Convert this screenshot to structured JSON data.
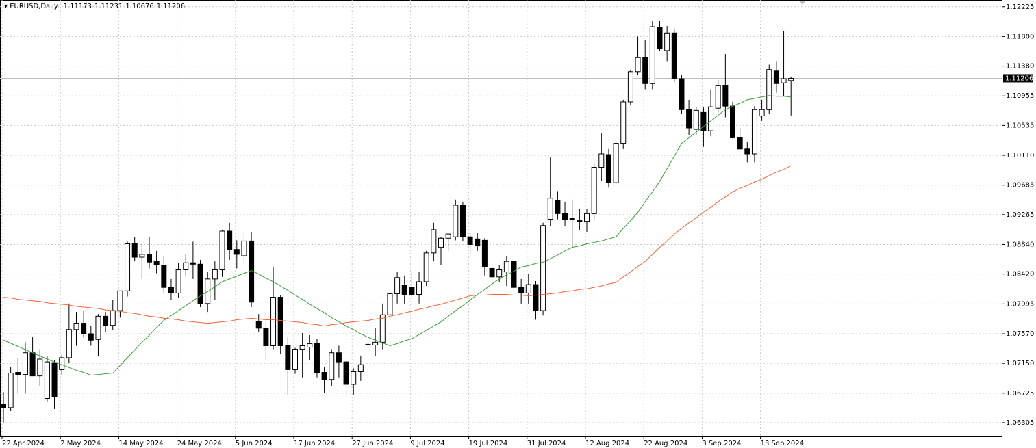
{
  "chart_data": {
    "type": "candlestick",
    "title": "EURUSD,Daily",
    "categories": [
      "22 Apr 2024",
      null,
      null,
      null,
      null,
      null,
      null,
      null,
      "2 May 2024",
      null,
      null,
      null,
      null,
      null,
      null,
      null,
      "14 May 2024",
      null,
      null,
      null,
      null,
      null,
      null,
      null,
      "24 May 2024",
      null,
      null,
      null,
      null,
      null,
      null,
      null,
      "5 Jun 2024",
      null,
      null,
      null,
      null,
      null,
      null,
      null,
      "17 Jun 2024",
      null,
      null,
      null,
      null,
      null,
      null,
      null,
      "27 Jun 2024",
      null,
      null,
      null,
      null,
      null,
      null,
      null,
      "9 Jul 2024",
      null,
      null,
      null,
      null,
      null,
      null,
      null,
      "19 Jul 2024",
      null,
      null,
      null,
      null,
      null,
      null,
      null,
      "31 Jul 2024",
      null,
      null,
      null,
      null,
      null,
      null,
      null,
      "12 Aug 2024",
      null,
      null,
      null,
      null,
      null,
      null,
      null,
      "22 Aug 2024",
      null,
      null,
      null,
      null,
      null,
      null,
      null,
      "3 Sep 2024",
      null,
      null,
      null,
      null,
      null,
      null,
      null,
      "13 Sep 2024",
      null,
      null,
      null,
      null
    ],
    "open": [
      1.0657,
      1.0652,
      1.0702,
      1.0699,
      1.073,
      1.0697,
      1.0665,
      1.0716,
      1.0706,
      1.0723,
      1.0763,
      1.0772,
      1.0757,
      1.0749,
      1.0782,
      1.0769,
      1.079,
      1.0818,
      1.0885,
      1.0866,
      1.087,
      1.086,
      1.0854,
      1.0823,
      1.0815,
      1.0848,
      1.0858,
      1.0856,
      1.08,
      1.0835,
      1.0848,
      1.0903,
      1.0877,
      1.0868,
      1.0889,
      1.0775,
      1.0765,
      1.074,
      1.0809,
      1.074,
      1.0706,
      1.0735,
      1.0738,
      1.0743,
      1.0702,
      1.0692,
      1.073,
      1.0717,
      1.0685,
      1.0703,
      1.0741,
      1.0741,
      1.0745,
      1.0784,
      1.0814,
      1.0826,
      1.0823,
      1.0813,
      1.0831,
      1.0872,
      1.088,
      1.0893,
      1.0895,
      1.094,
      1.0895,
      1.0892,
      1.089,
      1.085,
      1.0838,
      1.0845,
      1.086,
      1.0823,
      1.0815,
      1.0827,
      1.079,
      1.092,
      1.0947,
      1.0928,
      1.0921,
      1.0918,
      1.0917,
      1.0928,
      1.0994,
      1.1012,
      1.0972,
      1.1028,
      1.1087,
      1.113,
      1.115,
      1.1113,
      1.1193,
      1.116,
      1.1185,
      1.112,
      1.1076,
      1.1048,
      1.1072,
      1.1046,
      1.1078,
      1.111,
      1.1081,
      1.1036,
      1.102,
      1.1013,
      1.1067,
      1.1076,
      1.1131,
      1.1114,
      1.11173
    ],
    "high": [
      1.0674,
      1.071,
      1.0722,
      1.0745,
      1.0752,
      1.0735,
      1.0725,
      1.072,
      1.0727,
      1.08,
      1.0788,
      1.079,
      1.0768,
      1.0785,
      1.0788,
      1.0805,
      1.0815,
      1.0888,
      1.0895,
      1.0885,
      1.0895,
      1.0875,
      1.0868,
      1.0835,
      1.0858,
      1.087,
      1.0888,
      1.0862,
      1.0845,
      1.086,
      1.0905,
      1.0915,
      1.089,
      1.0902,
      1.0902,
      1.0785,
      1.0773,
      1.0852,
      1.0812,
      1.0752,
      1.0737,
      1.0758,
      1.0755,
      1.075,
      1.071,
      1.0735,
      1.074,
      1.0721,
      1.0708,
      1.0726,
      1.0775,
      1.0765,
      1.08,
      1.082,
      1.0845,
      1.084,
      1.0845,
      1.0845,
      1.0875,
      1.0915,
      1.0895,
      1.09,
      1.0948,
      1.0945,
      1.09,
      1.09,
      1.0893,
      1.0855,
      1.0855,
      1.0868,
      1.087,
      1.0835,
      1.0842,
      1.0832,
      1.0915,
      1.1008,
      1.096,
      1.0945,
      1.0948,
      1.0935,
      1.0935,
      1.1,
      1.1043,
      1.102,
      1.103,
      1.109,
      1.1133,
      1.118,
      1.1175,
      1.1202,
      1.1202,
      1.1195,
      1.119,
      1.1125,
      1.109,
      1.108,
      1.108,
      1.1105,
      1.1118,
      1.1155,
      1.1087,
      1.105,
      1.103,
      1.1081,
      1.109,
      1.114,
      1.1145,
      1.1188,
      1.11231
    ],
    "low": [
      1.0631,
      1.0647,
      1.0672,
      1.0672,
      1.0698,
      1.0682,
      1.066,
      1.065,
      1.0698,
      1.0715,
      1.074,
      1.0752,
      1.074,
      1.0725,
      1.076,
      1.0762,
      1.078,
      1.081,
      1.086,
      1.0835,
      1.085,
      1.0843,
      1.0815,
      1.0805,
      1.0808,
      1.084,
      1.0835,
      1.0795,
      1.0788,
      1.0805,
      1.0838,
      1.0862,
      1.085,
      1.0855,
      1.0795,
      1.076,
      1.072,
      1.0735,
      1.0728,
      1.067,
      1.07,
      1.0695,
      1.072,
      1.0695,
      1.0673,
      1.0683,
      1.0695,
      1.0668,
      1.067,
      1.069,
      1.0725,
      1.0725,
      1.0735,
      1.0775,
      1.08,
      1.08,
      1.0808,
      1.08,
      1.0825,
      1.086,
      1.0855,
      1.0875,
      1.089,
      1.0889,
      1.087,
      1.0875,
      1.084,
      1.0825,
      1.083,
      1.0825,
      1.0815,
      1.08,
      1.08,
      1.0777,
      1.0783,
      1.091,
      1.092,
      1.091,
      1.088,
      1.0905,
      1.0902,
      1.092,
      1.0975,
      1.0965,
      1.097,
      1.102,
      1.1082,
      1.1125,
      1.1105,
      1.1105,
      1.116,
      1.1145,
      1.1115,
      1.107,
      1.104,
      1.104,
      1.1023,
      1.1038,
      1.1072,
      1.1065,
      1.1035,
      1.102,
      1.1001,
      1.1001,
      1.106,
      1.107,
      1.11,
      1.1095,
      1.10676
    ],
    "close": [
      1.0652,
      1.0701,
      1.0699,
      1.073,
      1.0697,
      1.0721,
      1.0717,
      1.0667,
      1.0723,
      1.0763,
      1.0772,
      1.0757,
      1.0748,
      1.0782,
      1.0769,
      1.079,
      1.0818,
      1.0885,
      1.0866,
      1.087,
      1.0859,
      1.0855,
      1.0823,
      1.0815,
      1.0848,
      1.0858,
      1.0856,
      1.08,
      1.0835,
      1.0848,
      1.0903,
      1.0877,
      1.087,
      1.0889,
      1.0802,
      1.0765,
      1.074,
      1.0809,
      1.074,
      1.0706,
      1.0735,
      1.074,
      1.0743,
      1.0702,
      1.0692,
      1.073,
      1.0717,
      1.0685,
      1.0703,
      1.0713,
      1.0742,
      1.0745,
      1.0784,
      1.0814,
      1.0837,
      1.0813,
      1.0813,
      1.0831,
      1.0872,
      1.0905,
      1.0893,
      1.0899,
      1.094,
      1.0895,
      1.0884,
      1.0882,
      1.0852,
      1.0838,
      1.0848,
      1.086,
      1.0823,
      1.0815,
      1.0827,
      1.079,
      1.0911,
      1.095,
      1.0928,
      1.092,
      1.092,
      1.0917,
      1.0928,
      1.0994,
      1.1013,
      1.0972,
      1.1028,
      1.1087,
      1.113,
      1.115,
      1.1113,
      1.1194,
      1.1163,
      1.1185,
      1.112,
      1.1076,
      1.105,
      1.1075,
      1.1046,
      1.108,
      1.111,
      1.1081,
      1.1036,
      1.102,
      1.1013,
      1.1076,
      1.1076,
      1.1133,
      1.1113,
      1.112,
      1.11206
    ],
    "moving_averages": [
      {
        "color": "#3c9a3c",
        "values": [
          1.0748,
          1.07435,
          1.0739,
          1.07345,
          1.073,
          1.07255,
          1.0721,
          1.0717,
          1.0713,
          1.0709,
          1.0705,
          1.0702,
          1.0698,
          1.0699,
          1.07,
          1.0701,
          1.0712,
          1.0723,
          1.0734,
          1.0745,
          1.0755,
          1.0766,
          1.0776,
          1.0783,
          1.079,
          1.0797,
          1.0804,
          1.0811,
          1.0817,
          1.0824,
          1.0831,
          1.0835,
          1.0839,
          1.0843,
          1.0847,
          1.0842,
          1.0836,
          1.0831,
          1.0825,
          1.0819,
          1.0812,
          1.0806,
          1.0799,
          1.0793,
          1.0787,
          1.078,
          1.0774,
          1.0768,
          1.0763,
          1.0757,
          1.0752,
          1.0748,
          1.0744,
          1.074,
          1.0743,
          1.0747,
          1.075,
          1.0756,
          1.0762,
          1.0768,
          1.0774,
          1.0782,
          1.079,
          1.0797,
          1.0805,
          1.0813,
          1.082,
          1.0828,
          1.0835,
          1.0841,
          1.0846,
          1.0852,
          1.0854,
          1.0857,
          1.0859,
          1.0864,
          1.0869,
          1.0875,
          1.088,
          1.0882,
          1.0885,
          1.0887,
          1.0889,
          1.0892,
          1.0895,
          1.0907,
          1.0918,
          1.093,
          1.0945,
          1.0959,
          1.0974,
          1.0992,
          1.101,
          1.1028,
          1.1036,
          1.1044,
          1.1052,
          1.106,
          1.1068,
          1.1076,
          1.1081,
          1.1085,
          1.109,
          1.1092,
          1.1094,
          1.1096,
          1.1095,
          1.1095,
          1.1094
        ]
      },
      {
        "color": "#f0623a",
        "values": [
          1.0809,
          1.0808,
          1.0806,
          1.0805,
          1.0804,
          1.0803,
          1.0801,
          1.08,
          1.0799,
          1.0798,
          1.0796,
          1.0795,
          1.0794,
          1.0793,
          1.0791,
          1.079,
          1.0789,
          1.0787,
          1.0786,
          1.0784,
          1.0782,
          1.0781,
          1.0779,
          1.0778,
          1.0777,
          1.0775,
          1.0774,
          1.0773,
          1.0772,
          1.0773,
          1.0774,
          1.0775,
          1.0777,
          1.0778,
          1.0779,
          1.0778,
          1.0777,
          1.0777,
          1.0776,
          1.0775,
          1.0774,
          1.0773,
          1.0771,
          1.077,
          1.0768,
          1.077,
          1.0771,
          1.0773,
          1.0774,
          1.0775,
          1.0776,
          1.0778,
          1.0779,
          1.0782,
          1.0784,
          1.0787,
          1.0789,
          1.0792,
          1.0794,
          1.0797,
          1.0799,
          1.0802,
          1.0805,
          1.0808,
          1.0811,
          1.0812,
          1.0812,
          1.0813,
          1.0813,
          1.0813,
          1.0812,
          1.0812,
          1.0811,
          1.0812,
          1.0813,
          1.0814,
          1.0815,
          1.0817,
          1.0818,
          1.082,
          1.0821,
          1.0823,
          1.0825,
          1.0828,
          1.083,
          1.0838,
          1.0845,
          1.0853,
          1.086,
          1.087,
          1.088,
          1.0889,
          1.0899,
          1.0907,
          1.0915,
          1.0922,
          1.093,
          1.0937,
          1.0945,
          1.0952,
          1.0959,
          1.0964,
          1.0968,
          1.0973,
          1.0977,
          1.0982,
          1.0987,
          1.0991,
          1.0996
        ]
      }
    ],
    "up_color": "#ffffff",
    "down_color": "#000000",
    "ylim": [
      1.0611,
      1.1232
    ],
    "yticks": [
      1.12225,
      {
        "value": 1.118,
        "label": "1.11800"
      },
      {
        "value": 1.1138,
        "label": "1.11380"
      },
      1.10955,
      1.10535,
      {
        "value": 1.1011,
        "label": "1.10110"
      },
      1.09685,
      1.09265,
      {
        "value": 1.0884,
        "label": "1.08840"
      },
      {
        "value": 1.0842,
        "label": "1.08420"
      },
      1.07995,
      {
        "value": 1.0757,
        "label": "1.07570"
      },
      {
        "value": 1.0715,
        "label": "1.07150"
      },
      1.06725,
      1.06305
    ],
    "grid": true
  }
}
